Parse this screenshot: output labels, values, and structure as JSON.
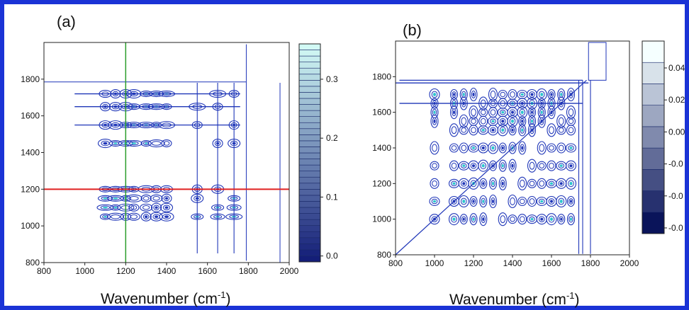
{
  "chart_data": [
    {
      "type": "heatmap",
      "panel_label": "(a)",
      "xlabel_text": "Wavenumber (cm",
      "xlabel_sup": "-1",
      "xlabel_close": ")",
      "xlim": [
        800,
        2000
      ],
      "ylim": [
        800,
        2000
      ],
      "x_ticks": [
        800,
        1000,
        1200,
        1400,
        1600,
        1800,
        2000
      ],
      "y_ticks": [
        800,
        1000,
        1200,
        1400,
        1600,
        1800
      ],
      "colorbar": {
        "range": [
          -0.01,
          0.36
        ],
        "ticks": [
          "0.0",
          "0.1",
          "0.2",
          "0.3"
        ],
        "tick_values": [
          0.0,
          0.1,
          0.2,
          0.3
        ],
        "levels": 36
      },
      "reference_lines": {
        "vertical_x": 1200,
        "vertical_color": "#2a9d2a",
        "horizontal_y": 1200,
        "horizontal_color": "#e02020"
      },
      "peak_x": [
        1100,
        1150,
        1200,
        1240,
        1300,
        1350,
        1400,
        1550,
        1650,
        1730
      ],
      "peak_y": [
        1050,
        1100,
        1150,
        1200,
        1450,
        1550,
        1650,
        1720
      ],
      "contour_color": "#1f36b8",
      "fill_colors": [
        "#2ec4cf",
        "#3f8fdc",
        "#1f36b8"
      ]
    },
    {
      "type": "heatmap",
      "panel_label": "(b)",
      "xlabel_text": "Wavenumber (cm",
      "xlabel_sup": "-1",
      "xlabel_close": ")",
      "xlim": [
        800,
        2000
      ],
      "ylim": [
        800,
        2000
      ],
      "x_ticks": [
        800,
        1000,
        1200,
        1400,
        1600,
        1800,
        2000
      ],
      "y_ticks": [
        800,
        1000,
        1200,
        1400,
        1600,
        1800
      ],
      "colorbar": {
        "ticks": [
          "0.04",
          "0.02",
          "0.00",
          "-0.0",
          "-0.0",
          "-0.0"
        ],
        "levels": 9
      },
      "diagonal": true,
      "peak_x": [
        1000,
        1100,
        1150,
        1200,
        1250,
        1300,
        1350,
        1400,
        1450,
        1500,
        1550,
        1600,
        1650,
        1700
      ],
      "peak_y": [
        1000,
        1100,
        1200,
        1300,
        1400,
        1500,
        1550,
        1600,
        1650,
        1700
      ],
      "contour_color": "#1f36b8",
      "fill_colors": [
        "#2ec4cf",
        "#1f36b8"
      ]
    }
  ]
}
